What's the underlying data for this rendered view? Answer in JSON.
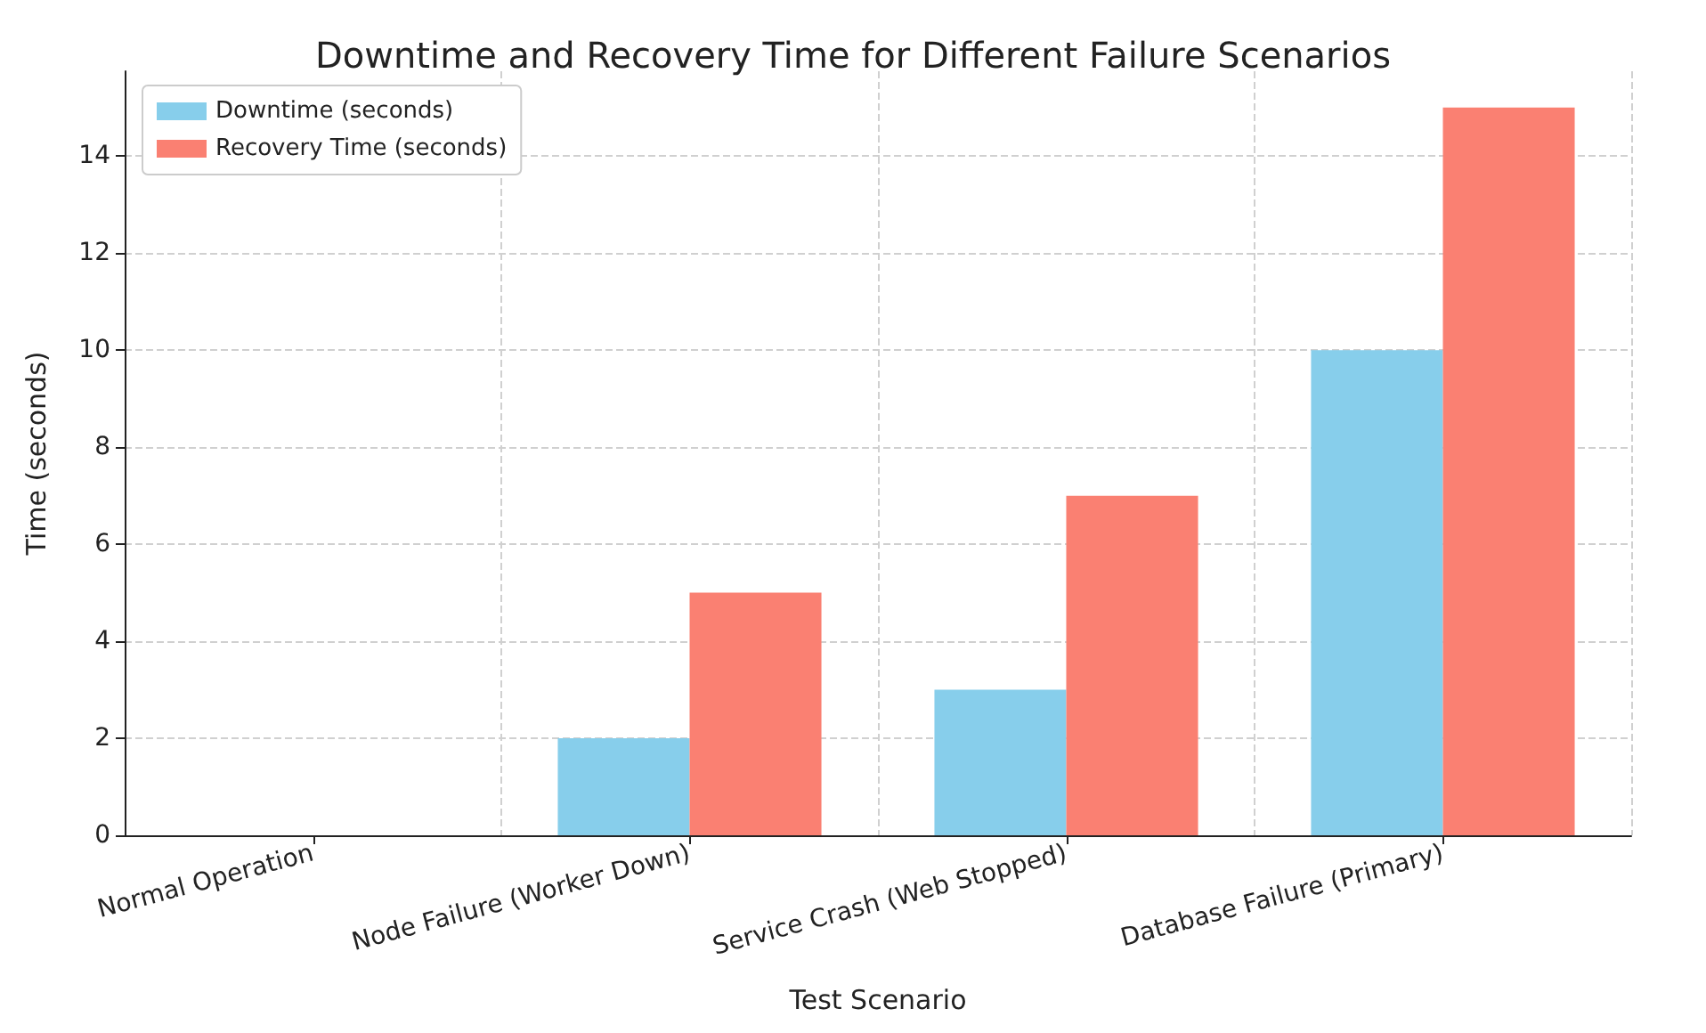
{
  "chart_data": {
    "type": "bar",
    "title": "Downtime and Recovery Time for Different Failure Scenarios",
    "xlabel": "Test Scenario",
    "ylabel": "Time (seconds)",
    "categories": [
      "Normal Operation",
      "Node Failure (Worker Down)",
      "Service Crash (Web Stopped)",
      "Database Failure (Primary)"
    ],
    "series": [
      {
        "name": "Downtime (seconds)",
        "color": "#87ceeb",
        "values": [
          0,
          2,
          3,
          10
        ]
      },
      {
        "name": "Recovery Time (seconds)",
        "color": "#fa8072",
        "values": [
          0,
          5,
          7,
          15
        ]
      }
    ],
    "ylim": [
      0,
      15.75
    ],
    "yticks": [
      0,
      2,
      4,
      6,
      8,
      10,
      12,
      14
    ],
    "grid": true,
    "legend": "top left"
  }
}
